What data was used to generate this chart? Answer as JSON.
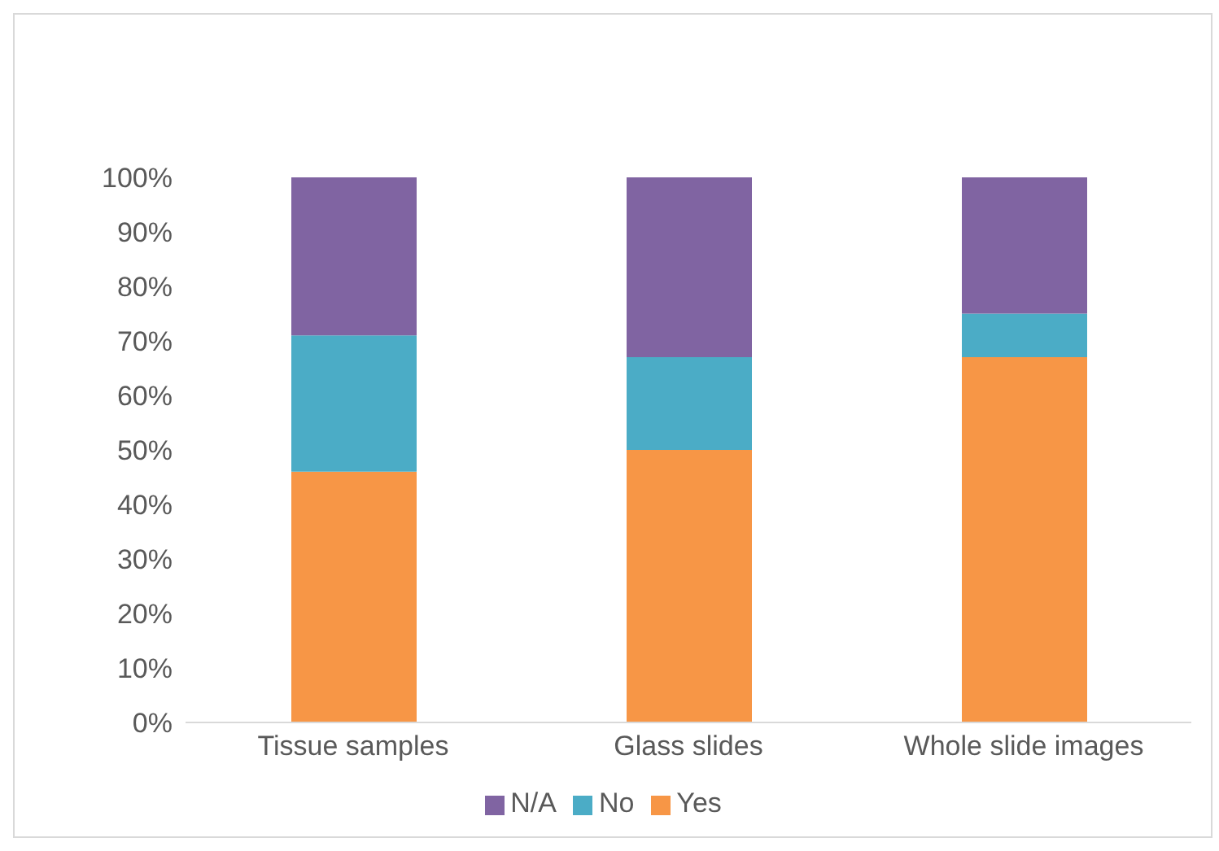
{
  "chart_data": {
    "type": "bar",
    "stacked": true,
    "categories": [
      "Tissue samples",
      "Glass slides",
      "Whole slide images"
    ],
    "series": [
      {
        "name": "Yes",
        "color": "#f79646",
        "values": [
          46,
          50,
          67
        ]
      },
      {
        "name": "No",
        "color": "#4bacc6",
        "values": [
          25,
          17,
          8
        ]
      },
      {
        "name": "N/A",
        "color": "#8064a2",
        "values": [
          29,
          33,
          25
        ]
      }
    ],
    "ylim": [
      0,
      100
    ],
    "yticks": [
      {
        "value": 0,
        "label": "0%"
      },
      {
        "value": 10,
        "label": "10%"
      },
      {
        "value": 20,
        "label": "20%"
      },
      {
        "value": 30,
        "label": "30%"
      },
      {
        "value": 40,
        "label": "40%"
      },
      {
        "value": 50,
        "label": "50%"
      },
      {
        "value": 60,
        "label": "60%"
      },
      {
        "value": 70,
        "label": "70%"
      },
      {
        "value": 80,
        "label": "80%"
      },
      {
        "value": 90,
        "label": "90%"
      },
      {
        "value": 100,
        "label": "100%"
      }
    ],
    "grid": false,
    "legend": "bottom"
  }
}
